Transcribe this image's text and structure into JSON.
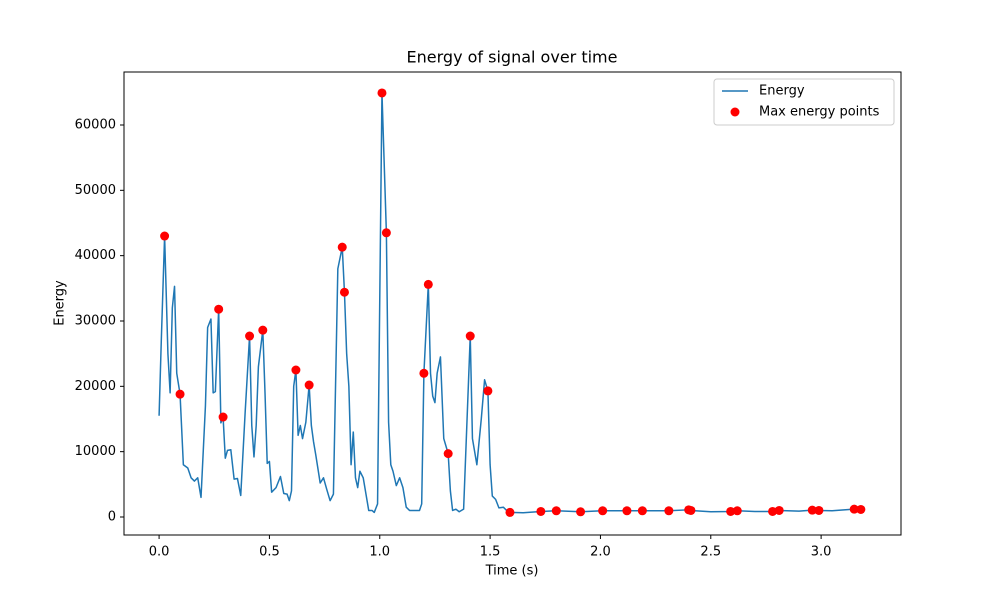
{
  "chart_data": {
    "type": "line",
    "title": "Energy of signal over time",
    "x_label": "Time (s)",
    "y_label": "Energy",
    "xlim": [
      -0.159,
      3.362
    ],
    "ylim": [
      -2755,
      68110
    ],
    "xticks": [
      {
        "value": 0,
        "label": "0.0"
      },
      0.5,
      {
        "value": 1,
        "label": "1.0"
      },
      1.5,
      {
        "value": 2,
        "label": "2.0"
      },
      2.5,
      {
        "value": 3,
        "label": "3.0"
      }
    ],
    "yticks": [
      0,
      10000,
      20000,
      30000,
      40000,
      50000,
      60000
    ],
    "grid": false,
    "legend": "upper right",
    "series": [
      {
        "name": "Energy",
        "type": "line",
        "color": "#1f77b4",
        "x": [
          0,
          0.01,
          0.025,
          0.04,
          0.05,
          0.06,
          0.07,
          0.08,
          0.095,
          0.11,
          0.13,
          0.145,
          0.16,
          0.175,
          0.19,
          0.21,
          0.22,
          0.235,
          0.245,
          0.255,
          0.27,
          0.28,
          0.29,
          0.3,
          0.31,
          0.325,
          0.34,
          0.355,
          0.37,
          0.39,
          0.41,
          0.42,
          0.43,
          0.44,
          0.45,
          0.47,
          0.48,
          0.49,
          0.5,
          0.51,
          0.53,
          0.55,
          0.565,
          0.58,
          0.59,
          0.6,
          0.61,
          0.62,
          0.63,
          0.64,
          0.65,
          0.665,
          0.68,
          0.69,
          0.7,
          0.71,
          0.73,
          0.745,
          0.76,
          0.775,
          0.79,
          0.81,
          0.83,
          0.84,
          0.85,
          0.86,
          0.87,
          0.88,
          0.89,
          0.9,
          0.91,
          0.925,
          0.95,
          0.965,
          0.975,
          0.99,
          1.01,
          1.03,
          1.04,
          1.05,
          1.06,
          1.075,
          1.09,
          1.105,
          1.12,
          1.135,
          1.18,
          1.19,
          1.2,
          1.22,
          1.23,
          1.24,
          1.25,
          1.26,
          1.275,
          1.29,
          1.31,
          1.32,
          1.33,
          1.345,
          1.36,
          1.38,
          1.41,
          1.42,
          1.44,
          1.46,
          1.475,
          1.49,
          1.5,
          1.51,
          1.525,
          1.54,
          1.56,
          1.575,
          1.59,
          1.65,
          1.73,
          1.8,
          1.91,
          2.01,
          2.12,
          2.19,
          2.31,
          2.4,
          2.41,
          2.5,
          2.59,
          2.62,
          2.7,
          2.78,
          2.81,
          2.9,
          2.96,
          2.99,
          3.05,
          3.15,
          3.18
        ],
        "values": [
          15500,
          27000,
          43000,
          25000,
          19000,
          32000,
          35300,
          22000,
          18800,
          8000,
          7500,
          6000,
          5500,
          6000,
          3000,
          17000,
          29000,
          30300,
          19000,
          19200,
          31800,
          14400,
          15300,
          9000,
          10200,
          10300,
          5800,
          5900,
          3300,
          16000,
          27700,
          14000,
          9200,
          14000,
          23000,
          28600,
          19000,
          8200,
          8500,
          3800,
          4500,
          6200,
          3600,
          3500,
          2500,
          4000,
          20000,
          22500,
          12500,
          14000,
          12000,
          14500,
          20200,
          14000,
          11500,
          9500,
          5200,
          6000,
          4200,
          2500,
          3500,
          38000,
          41300,
          34400,
          25000,
          20000,
          8000,
          13000,
          6000,
          4500,
          7000,
          6000,
          1000,
          1000,
          700,
          2000,
          64900,
          43500,
          14500,
          8000,
          7000,
          4800,
          6000,
          4500,
          1500,
          1000,
          1000,
          2000,
          22000,
          35600,
          22000,
          18500,
          17500,
          22000,
          24500,
          12000,
          9700,
          4000,
          1000,
          1200,
          800,
          1200,
          27700,
          12000,
          8000,
          15000,
          21000,
          19300,
          8000,
          3200,
          2700,
          1400,
          1500,
          1000,
          700,
          650,
          850,
          950,
          800,
          950,
          950,
          950,
          950,
          1100,
          1000,
          800,
          850,
          950,
          850,
          850,
          1000,
          900,
          1050,
          1000,
          950,
          1200,
          1150
        ]
      },
      {
        "name": "Max energy points",
        "type": "scatter",
        "color": "#ff0000",
        "x": [
          0.025,
          0.095,
          0.27,
          0.29,
          0.41,
          0.47,
          0.62,
          0.68,
          0.83,
          0.84,
          1.01,
          1.03,
          1.2,
          1.22,
          1.31,
          1.41,
          1.49,
          1.59,
          1.73,
          1.8,
          1.91,
          2.01,
          2.12,
          2.19,
          2.31,
          2.4,
          2.41,
          2.59,
          2.62,
          2.78,
          2.81,
          2.96,
          2.99,
          3.15,
          3.18
        ],
        "values": [
          43000,
          18800,
          31800,
          15300,
          27700,
          28600,
          22500,
          20200,
          41300,
          34400,
          64900,
          43500,
          22000,
          35600,
          9700,
          27700,
          19300,
          700,
          850,
          950,
          800,
          950,
          950,
          950,
          950,
          1100,
          1000,
          850,
          950,
          850,
          1000,
          1050,
          1000,
          1200,
          1150
        ]
      }
    ]
  }
}
